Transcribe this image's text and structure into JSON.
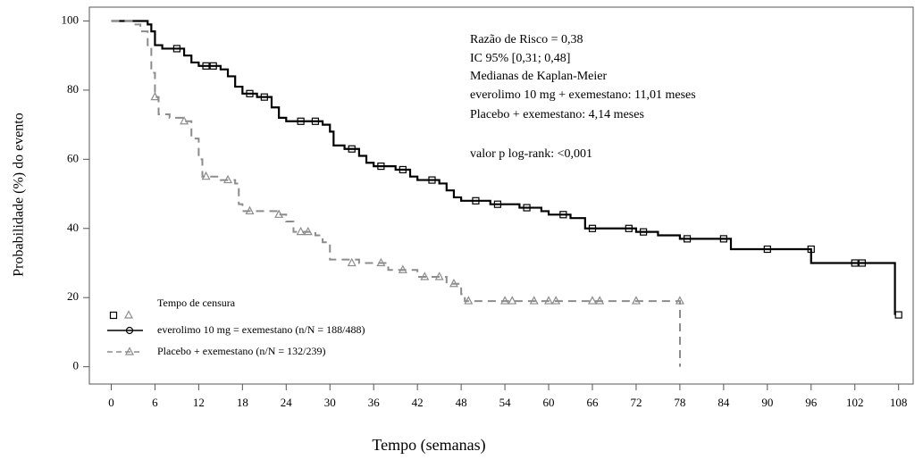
{
  "chart_data": {
    "type": "km",
    "x_label": "Tempo (semanas)",
    "y_label": "Probabilidade (%) do evento",
    "annotations": [
      "Razão de Risco = 0,38",
      "IC 95% [0,31; 0,48]",
      "Medianas de Kaplan-Meier",
      "everolimo 10 mg + exemestano: 11,01 meses",
      "Placebo + exemestano: 4,14 meses",
      "valor p log-rank: <0,001"
    ],
    "censor_label": "Tempo de censura",
    "xlim": [
      -3,
      110
    ],
    "ylim": [
      -5,
      104
    ],
    "xticks": [
      0,
      6,
      12,
      18,
      24,
      30,
      36,
      42,
      48,
      54,
      60,
      66,
      72,
      78,
      84,
      90,
      96,
      102,
      108
    ],
    "yticks": [
      0,
      20,
      40,
      60,
      80,
      100
    ],
    "series": [
      {
        "name": "everolimo 10 mg = exemestano (n/N = 188/488)",
        "color": "#000000",
        "dash": false,
        "marker": "square",
        "x": [
          0,
          4,
          5,
          5.5,
          6,
          7,
          10,
          11,
          12,
          15,
          16,
          17,
          18,
          20,
          22,
          23,
          24,
          29,
          30,
          30.5,
          32,
          34,
          35,
          36,
          39,
          41,
          42,
          45,
          46,
          47,
          48,
          52,
          56,
          59,
          60,
          63,
          65,
          72,
          75,
          78,
          85,
          96,
          107,
          107.5
        ],
        "y": [
          100,
          100,
          99,
          97,
          93,
          92,
          90,
          88,
          87,
          86,
          84,
          81,
          79,
          78,
          75,
          72,
          71,
          70,
          68,
          64,
          63,
          61,
          59,
          58,
          57,
          55,
          54,
          53,
          51,
          49,
          48,
          47,
          46,
          45,
          44,
          43,
          40,
          39,
          38,
          37,
          34,
          30,
          30,
          15
        ],
        "censor_x": [
          9,
          13,
          14,
          19,
          21,
          26,
          28,
          33,
          37,
          40,
          44,
          50,
          53,
          57,
          62,
          66,
          71,
          73,
          79,
          84,
          90,
          96,
          102,
          103,
          108
        ],
        "censor_y": [
          92,
          87,
          87,
          79,
          78,
          71,
          71,
          63,
          58,
          57,
          54,
          48,
          47,
          46,
          44,
          40,
          40,
          39,
          37,
          37,
          34,
          34,
          30,
          30,
          15
        ]
      },
      {
        "name": "Placebo + exemestano (n/N = 132/239)",
        "color": "#8c8c8c",
        "dash": true,
        "marker": "triangle",
        "x": [
          0,
          3,
          4,
          5,
          5.5,
          6,
          6.5,
          8,
          10,
          11,
          12,
          12.5,
          15,
          17,
          17.5,
          18,
          23,
          24,
          25,
          28,
          29,
          30,
          34,
          38,
          42,
          46,
          48,
          48.5,
          78,
          78.01
        ],
        "y": [
          100,
          99,
          97,
          93,
          85,
          78,
          73,
          72,
          71,
          66,
          60,
          55,
          54,
          53,
          47,
          45,
          44,
          42,
          39,
          38,
          36,
          31,
          30,
          28,
          26,
          24,
          21,
          19,
          19,
          0
        ],
        "censor_x": [
          6,
          10,
          13,
          16,
          19,
          23,
          26,
          27,
          33,
          37,
          40,
          43,
          45,
          47,
          49,
          54,
          55,
          58,
          60,
          61,
          66,
          67,
          72,
          78
        ],
        "censor_y": [
          78,
          71,
          55,
          54,
          45,
          44,
          39,
          39,
          30,
          30,
          28,
          26,
          26,
          24,
          19,
          19,
          19,
          19,
          19,
          19,
          19,
          19,
          19,
          19
        ]
      }
    ]
  }
}
